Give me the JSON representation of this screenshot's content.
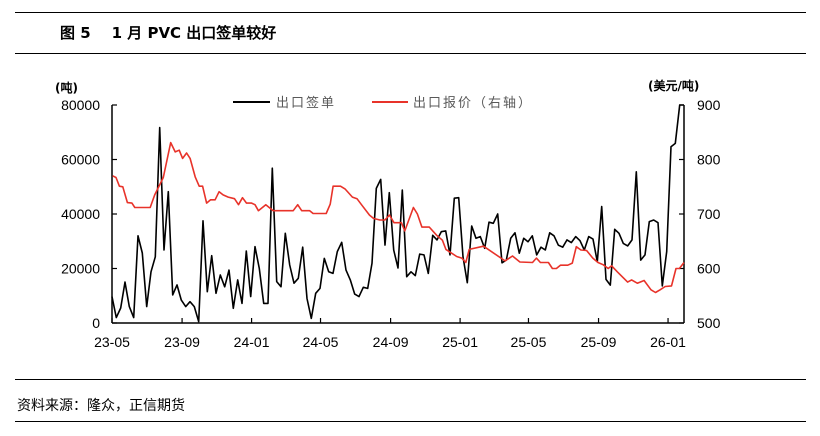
{
  "figure": {
    "label": "图 5",
    "title": "1 月 PVC 出口签单较好",
    "source": "资料来源：隆众，正信期货"
  },
  "chart_data": {
    "type": "line",
    "title": "1 月 PVC 出口签单较好",
    "x_tick_labels": [
      "23-05",
      "23-09",
      "24-01",
      "24-05",
      "24-09",
      "25-01",
      "25-05",
      "25-09",
      "26-01"
    ],
    "x_tick_dates": [
      "2023-05-01",
      "2023-09-01",
      "2024-01-01",
      "2024-05-01",
      "2024-09-01",
      "2025-01-01",
      "2025-05-01",
      "2025-09-01",
      "2026-01-01"
    ],
    "xlim": [
      "2023-05-01",
      "2026-01-29"
    ],
    "y_left": {
      "unit": "(吨)",
      "ylim": [
        0,
        80000
      ],
      "ticks": [
        "0",
        "20000",
        "40000",
        "60000",
        "80000"
      ]
    },
    "y_right": {
      "unit": "(美元/吨)",
      "ylim": [
        500,
        900
      ],
      "ticks": [
        "500",
        "600",
        "700",
        "800",
        "900"
      ]
    },
    "grid": false,
    "legend_position": "top-center",
    "series": [
      {
        "name": "出口签单",
        "axis": "left",
        "color": "#000000",
        "frequency": "weekly",
        "values": [
          9700,
          2000,
          5500,
          15000,
          6000,
          2000,
          32000,
          25700,
          6000,
          18800,
          24300,
          71700,
          26800,
          48200,
          10300,
          14000,
          8400,
          6000,
          7800,
          6000,
          500,
          37500,
          11500,
          24700,
          10900,
          17600,
          13300,
          19400,
          5400,
          15800,
          7200,
          26400,
          9700,
          28000,
          20000,
          7200,
          7200,
          56800,
          15200,
          13300,
          32900,
          21300,
          14600,
          16400,
          27800,
          9000,
          1700,
          10900,
          12700,
          23700,
          18800,
          18200,
          26200,
          29600,
          19400,
          15800,
          10600,
          9700,
          13100,
          12700,
          21900,
          49400,
          52700,
          28600,
          47800,
          26800,
          20200,
          48800,
          17000,
          18800,
          17400,
          25300,
          25000,
          18200,
          32200,
          30500,
          33500,
          33800,
          25000,
          45800,
          46000,
          24300,
          14800,
          35600,
          31100,
          31700,
          27400,
          37000,
          36600,
          40000,
          22100,
          23100,
          31100,
          33100,
          25600,
          31100,
          29800,
          32000,
          25000,
          27800,
          26800,
          33100,
          32000,
          28600,
          27800,
          30500,
          29500,
          31700,
          30200,
          26800,
          31700,
          30800,
          22500,
          42700,
          16000,
          13900,
          34400,
          32900,
          29200,
          28300,
          30500,
          55500,
          23100,
          25000,
          37200,
          37800,
          36800,
          13600,
          26200,
          64700,
          65900,
          80000,
          80000
        ]
      },
      {
        "name": "出口报价（右轴）",
        "axis": "right",
        "color": "#E8332A",
        "points": [
          [
            "2023-05-02",
            770
          ],
          [
            "2023-05-08",
            767
          ],
          [
            "2023-05-14",
            751
          ],
          [
            "2023-05-20",
            750
          ],
          [
            "2023-05-28",
            721
          ],
          [
            "2023-06-05",
            720
          ],
          [
            "2023-06-10",
            712
          ],
          [
            "2023-07-07",
            712
          ],
          [
            "2023-07-15",
            735
          ],
          [
            "2023-07-30",
            767
          ],
          [
            "2023-08-12",
            831
          ],
          [
            "2023-08-20",
            814
          ],
          [
            "2023-08-27",
            817
          ],
          [
            "2023-09-02",
            802
          ],
          [
            "2023-09-09",
            812
          ],
          [
            "2023-09-15",
            802
          ],
          [
            "2023-09-24",
            768
          ],
          [
            "2023-10-01",
            751
          ],
          [
            "2023-10-07",
            751
          ],
          [
            "2023-10-14",
            720
          ],
          [
            "2023-10-21",
            726
          ],
          [
            "2023-10-29",
            726
          ],
          [
            "2023-11-05",
            741
          ],
          [
            "2023-11-12",
            735
          ],
          [
            "2023-11-21",
            731
          ],
          [
            "2023-12-02",
            728
          ],
          [
            "2023-12-09",
            717
          ],
          [
            "2023-12-16",
            730
          ],
          [
            "2023-12-23",
            720
          ],
          [
            "2024-01-01",
            720
          ],
          [
            "2024-01-07",
            717
          ],
          [
            "2024-01-13",
            706
          ],
          [
            "2024-01-26",
            717
          ],
          [
            "2024-02-08",
            706
          ],
          [
            "2024-03-14",
            706
          ],
          [
            "2024-03-22",
            717
          ],
          [
            "2024-03-29",
            706
          ],
          [
            "2024-04-12",
            706
          ],
          [
            "2024-04-18",
            701
          ],
          [
            "2024-05-11",
            701
          ],
          [
            "2024-05-18",
            718
          ],
          [
            "2024-05-23",
            751
          ],
          [
            "2024-06-05",
            751
          ],
          [
            "2024-06-13",
            746
          ],
          [
            "2024-06-26",
            731
          ],
          [
            "2024-07-04",
            728
          ],
          [
            "2024-07-12",
            717
          ],
          [
            "2024-07-26",
            698
          ],
          [
            "2024-08-02",
            692
          ],
          [
            "2024-08-13",
            689
          ],
          [
            "2024-08-22",
            689
          ],
          [
            "2024-08-30",
            698
          ],
          [
            "2024-09-07",
            684
          ],
          [
            "2024-09-20",
            684
          ],
          [
            "2024-09-26",
            669
          ],
          [
            "2024-10-11",
            712
          ],
          [
            "2024-10-18",
            700
          ],
          [
            "2024-10-26",
            676
          ],
          [
            "2024-11-08",
            676
          ],
          [
            "2024-11-21",
            661
          ],
          [
            "2024-12-01",
            652
          ],
          [
            "2024-12-07",
            635
          ],
          [
            "2024-12-26",
            622
          ],
          [
            "2025-01-04",
            619
          ],
          [
            "2025-01-11",
            611
          ],
          [
            "2025-01-17",
            635
          ],
          [
            "2025-02-11",
            641
          ],
          [
            "2025-03-21",
            614
          ],
          [
            "2025-04-03",
            623
          ],
          [
            "2025-04-16",
            612
          ],
          [
            "2025-05-08",
            611
          ],
          [
            "2025-05-15",
            619
          ],
          [
            "2025-05-22",
            611
          ],
          [
            "2025-06-05",
            611
          ],
          [
            "2025-06-12",
            600
          ],
          [
            "2025-06-19",
            600
          ],
          [
            "2025-06-26",
            606
          ],
          [
            "2025-07-09",
            606
          ],
          [
            "2025-07-17",
            610
          ],
          [
            "2025-07-24",
            640
          ],
          [
            "2025-08-01",
            634
          ],
          [
            "2025-08-11",
            633
          ],
          [
            "2025-08-22",
            619
          ],
          [
            "2025-08-31",
            611
          ],
          [
            "2025-09-09",
            607
          ],
          [
            "2025-09-18",
            600
          ],
          [
            "2025-09-24",
            605
          ],
          [
            "2025-10-04",
            594
          ],
          [
            "2025-10-22",
            575
          ],
          [
            "2025-10-29",
            579
          ],
          [
            "2025-11-08",
            573
          ],
          [
            "2025-11-20",
            578
          ],
          [
            "2025-12-02",
            561
          ],
          [
            "2025-12-10",
            556
          ],
          [
            "2025-12-18",
            561
          ],
          [
            "2025-12-27",
            567
          ],
          [
            "2026-01-07",
            568
          ],
          [
            "2026-01-15",
            600
          ],
          [
            "2026-01-21",
            600
          ],
          [
            "2026-01-29",
            611
          ]
        ]
      }
    ]
  }
}
